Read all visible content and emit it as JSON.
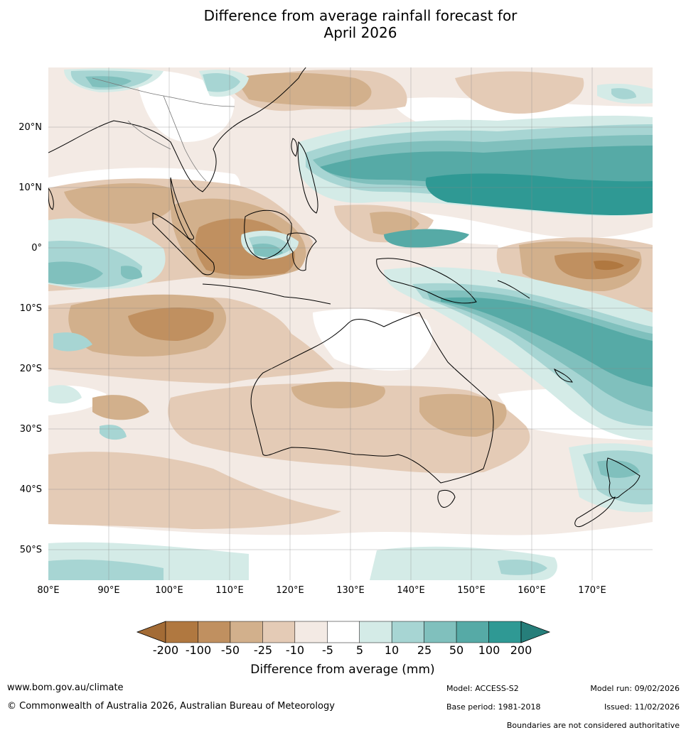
{
  "header": {
    "title_line1": "Difference from average rainfall forecast for",
    "title_line2": "April 2026"
  },
  "map": {
    "lon_labels": [
      "80°E",
      "90°E",
      "100°E",
      "110°E",
      "120°E",
      "130°E",
      "140°E",
      "150°E",
      "160°E",
      "170°E"
    ],
    "lat_labels": [
      "20°N",
      "10°N",
      "0°",
      "10°S",
      "20°S",
      "30°S",
      "40°S",
      "50°S"
    ]
  },
  "legend": {
    "ticks": [
      "-200",
      "-100",
      "-50",
      "-25",
      "-10",
      "-5",
      "5",
      "10",
      "25",
      "50",
      "100",
      "200"
    ],
    "colors": [
      "#a36b35",
      "#b07840",
      "#c09060",
      "#d2b08c",
      "#e4cbb6",
      "#f3eae4",
      "#ffffff",
      "#d4ebe7",
      "#a7d5d3",
      "#80c0bd",
      "#56aaa6",
      "#2f9994",
      "#267e7a"
    ],
    "title": "Difference from average (mm)"
  },
  "footer": {
    "website": "www.bom.gov.au/climate",
    "copyright": "© Commonwealth of Australia 2026, Australian Bureau of Meteorology",
    "model": "Model: ACCESS-S2",
    "base_period": "Base period: 1981-2018",
    "model_run": "Model run: 09/02/2026",
    "issued": "Issued: 11/02/2026",
    "disclaimer": "Boundaries are not considered authoritative"
  }
}
